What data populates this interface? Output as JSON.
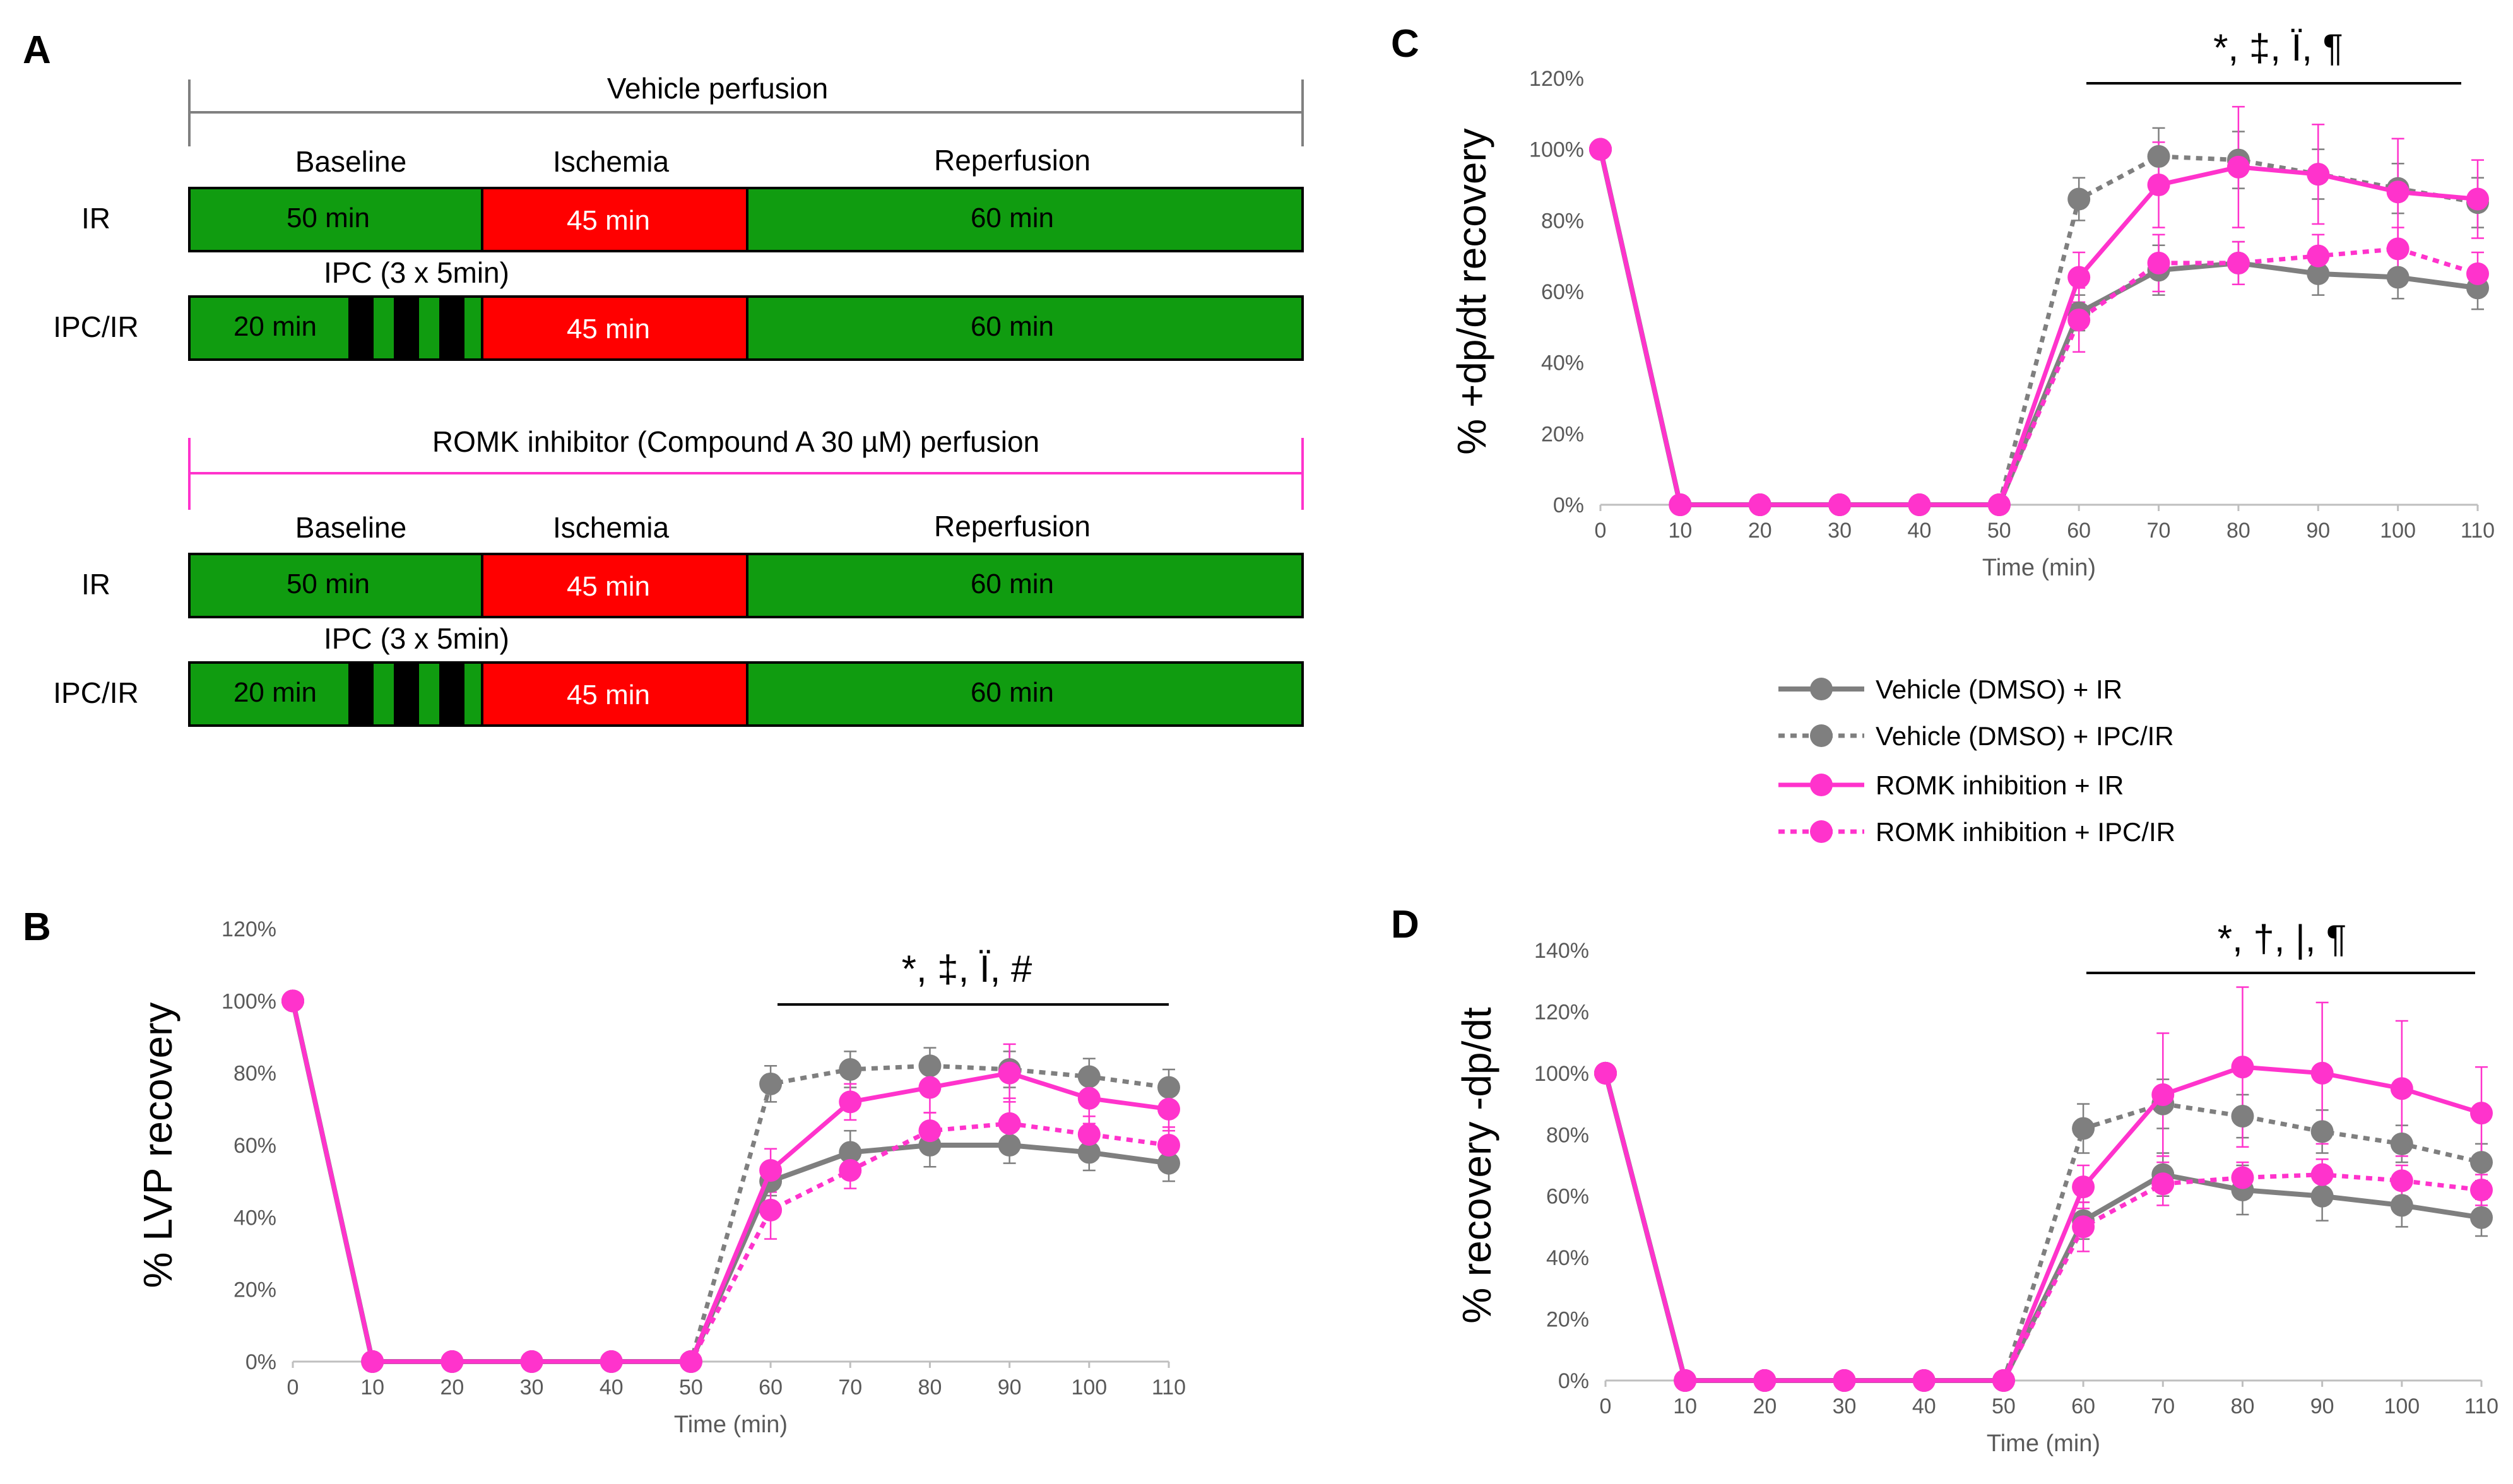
{
  "panel_a": {
    "label": "A",
    "vehicle_title": "Vehicle perfusion",
    "romk_title": "ROMK inhibitor (Compound A 30 µM) perfusion",
    "phase_baseline": "Baseline",
    "phase_ischemia": "Ischemia",
    "phase_reperfusion": "Reperfusion",
    "row_ir": "IR",
    "row_ipc": "IPC/IR",
    "ipc_note": "IPC (3 x 5min)",
    "seg_baseline_ir": "50 min",
    "seg_baseline_ipc": "20 min",
    "seg_ischemia": "45 min",
    "seg_reperfusion": "60 min",
    "colors": {
      "green": "#109c10",
      "red": "#ff0000",
      "black": "#000000",
      "vehicle_line": "#808080",
      "romk_line": "#ff33cc"
    }
  },
  "legend": {
    "items": [
      {
        "label": "Vehicle (DMSO) + IR",
        "color": "#7f7f7f",
        "dash": "solid"
      },
      {
        "label": "Vehicle (DMSO) + IPC/IR",
        "color": "#7f7f7f",
        "dash": "dotted"
      },
      {
        "label": "ROMK inhibition + IR",
        "color": "#ff33cc",
        "dash": "solid"
      },
      {
        "label": "ROMK inhibition + IPC/IR",
        "color": "#ff33cc",
        "dash": "dotted"
      }
    ]
  },
  "chart_data": [
    {
      "panel": "B",
      "type": "line",
      "ylabel": "% LVP recovery",
      "xlabel": "Time (min)",
      "x": [
        0,
        10,
        20,
        30,
        40,
        50,
        60,
        70,
        80,
        90,
        100,
        110
      ],
      "ylim": [
        0,
        120
      ],
      "ytick_step": 20,
      "significance": "*, ‡, Ï, #",
      "sig_range": [
        60,
        110
      ],
      "series": [
        {
          "name": "Vehicle (DMSO) + IR",
          "values": [
            100,
            0,
            0,
            0,
            0,
            0,
            50,
            58,
            60,
            60,
            58,
            55
          ],
          "errors": [
            0,
            0,
            0,
            0,
            0,
            0,
            4,
            6,
            6,
            5,
            5,
            5
          ]
        },
        {
          "name": "Vehicle (DMSO) + IPC/IR",
          "values": [
            100,
            0,
            0,
            0,
            0,
            0,
            77,
            81,
            82,
            81,
            79,
            76
          ],
          "errors": [
            0,
            0,
            0,
            0,
            0,
            0,
            5,
            5,
            5,
            5,
            5,
            5
          ]
        },
        {
          "name": "ROMK inhibition + IR",
          "values": [
            100,
            0,
            0,
            0,
            0,
            0,
            53,
            72,
            76,
            80,
            73,
            70
          ],
          "errors": [
            0,
            0,
            0,
            0,
            0,
            0,
            6,
            5,
            7,
            8,
            7,
            6
          ]
        },
        {
          "name": "ROMK inhibition + IPC/IR",
          "values": [
            100,
            0,
            0,
            0,
            0,
            0,
            42,
            53,
            64,
            66,
            63,
            60
          ],
          "errors": [
            0,
            0,
            0,
            0,
            0,
            0,
            8,
            5,
            5,
            7,
            5,
            5
          ]
        }
      ]
    },
    {
      "panel": "C",
      "type": "line",
      "ylabel": "% +dp/dt recovery",
      "xlabel": "Time (min)",
      "x": [
        0,
        10,
        20,
        30,
        40,
        50,
        60,
        70,
        80,
        90,
        100,
        110
      ],
      "ylim": [
        0,
        120
      ],
      "ytick_step": 20,
      "significance": "*, ‡, Ï, ¶",
      "sig_range": [
        60,
        110
      ],
      "series": [
        {
          "name": "Vehicle (DMSO) + IR",
          "values": [
            100,
            0,
            0,
            0,
            0,
            0,
            54,
            66,
            68,
            65,
            64,
            61
          ],
          "errors": [
            0,
            0,
            0,
            0,
            0,
            0,
            5,
            7,
            6,
            6,
            6,
            6
          ]
        },
        {
          "name": "Vehicle (DMSO) + IPC/IR",
          "values": [
            100,
            0,
            0,
            0,
            0,
            0,
            86,
            98,
            97,
            93,
            89,
            85
          ],
          "errors": [
            0,
            0,
            0,
            0,
            0,
            0,
            6,
            8,
            8,
            7,
            7,
            7
          ]
        },
        {
          "name": "ROMK inhibition + IR",
          "values": [
            100,
            0,
            0,
            0,
            0,
            0,
            64,
            90,
            95,
            93,
            88,
            86
          ],
          "errors": [
            0,
            0,
            0,
            0,
            0,
            0,
            7,
            12,
            17,
            14,
            15,
            11
          ]
        },
        {
          "name": "ROMK inhibition + IPC/IR",
          "values": [
            100,
            0,
            0,
            0,
            0,
            0,
            52,
            68,
            68,
            70,
            72,
            65
          ],
          "errors": [
            0,
            0,
            0,
            0,
            0,
            0,
            9,
            8,
            6,
            6,
            6,
            6
          ]
        }
      ]
    },
    {
      "panel": "D",
      "type": "line",
      "ylabel": "% recovery -dp/dt",
      "xlabel": "Time (min)",
      "x": [
        0,
        10,
        20,
        30,
        40,
        50,
        60,
        70,
        80,
        90,
        100,
        110
      ],
      "ylim": [
        0,
        140
      ],
      "ytick_step": 20,
      "significance": "*, †, |, ¶",
      "sig_range": [
        60,
        110
      ],
      "series": [
        {
          "name": "Vehicle (DMSO) + IR",
          "values": [
            100,
            0,
            0,
            0,
            0,
            0,
            52,
            67,
            62,
            60,
            57,
            53
          ],
          "errors": [
            0,
            0,
            0,
            0,
            0,
            0,
            6,
            7,
            8,
            8,
            7,
            6
          ]
        },
        {
          "name": "Vehicle (DMSO) + IPC/IR",
          "values": [
            100,
            0,
            0,
            0,
            0,
            0,
            82,
            90,
            86,
            81,
            77,
            71
          ],
          "errors": [
            0,
            0,
            0,
            0,
            0,
            0,
            8,
            8,
            7,
            7,
            6,
            6
          ]
        },
        {
          "name": "ROMK inhibition + IR",
          "values": [
            100,
            0,
            0,
            0,
            0,
            0,
            63,
            93,
            102,
            100,
            95,
            87
          ],
          "errors": [
            0,
            0,
            0,
            0,
            0,
            0,
            7,
            20,
            26,
            23,
            22,
            15
          ]
        },
        {
          "name": "ROMK inhibition + IPC/IR",
          "values": [
            100,
            0,
            0,
            0,
            0,
            0,
            50,
            64,
            66,
            67,
            65,
            62
          ],
          "errors": [
            0,
            0,
            0,
            0,
            0,
            0,
            8,
            7,
            5,
            5,
            5,
            5
          ]
        }
      ]
    }
  ]
}
